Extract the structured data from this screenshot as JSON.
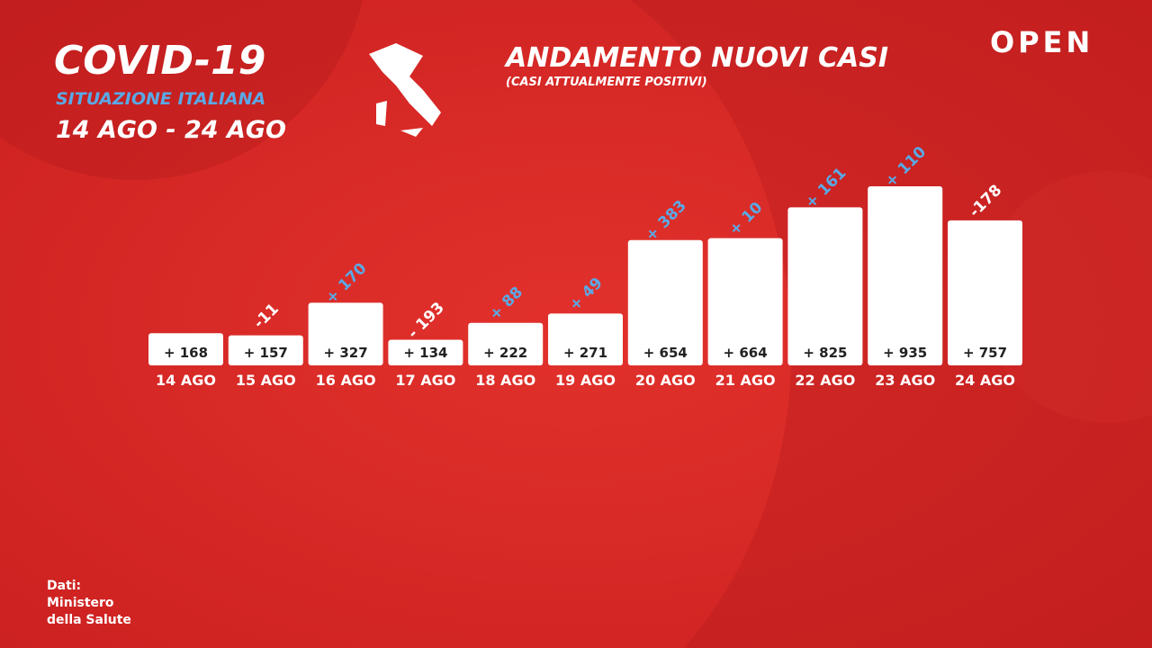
{
  "header": {
    "title": "COVID-19",
    "subtitle": "SITUAZIONE ITALIANA",
    "period": "14 AGO - 24 AGO",
    "logo": "OPEN"
  },
  "source": [
    "Dati:",
    "Ministero",
    "della Salute"
  ],
  "chart_data": {
    "type": "bar",
    "title": "ANDAMENTO NUOVI CASI",
    "subtitle": "(CASI ATTUALMENTE POSITIVI)",
    "categories": [
      "14 AGO",
      "15 AGO",
      "16 AGO",
      "17 AGO",
      "18 AGO",
      "19 AGO",
      "20 AGO",
      "21 AGO",
      "22 AGO",
      "23 AGO",
      "24 AGO"
    ],
    "values": [
      168,
      157,
      327,
      134,
      222,
      271,
      654,
      664,
      825,
      935,
      757
    ],
    "value_labels": [
      "+ 168",
      "+ 157",
      "+ 327",
      "+ 134",
      "+ 222",
      "+ 271",
      "+ 654",
      "+ 664",
      "+ 825",
      "+ 935",
      "+ 757"
    ],
    "color": "#ffffff",
    "changes": {
      "values": [
        null,
        -11,
        170,
        -193,
        88,
        49,
        383,
        10,
        161,
        110,
        -178
      ],
      "value_labels": [
        null,
        "-11",
        "+ 170",
        "- 193",
        "+ 88",
        "+ 49",
        "+ 383",
        "+ 10",
        "+ 161",
        "+ 110",
        "-178"
      ],
      "positive_color": "#5aa9e6",
      "negative_color": "#ffffff"
    }
  }
}
